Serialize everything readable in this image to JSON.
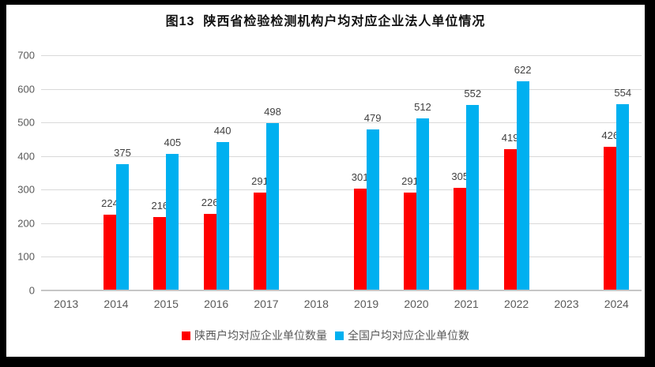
{
  "chart_data": {
    "type": "bar",
    "title": "图13  陕西省检验检测机构户均对应企业法人单位情况",
    "categories": [
      "2013",
      "2014",
      "2015",
      "2016",
      "2017",
      "2018",
      "2019",
      "2020",
      "2021",
      "2022",
      "2023",
      "2024"
    ],
    "series": [
      {
        "name": "陕西户均对应企业单位数量",
        "color": "#ff0000",
        "values": [
          null,
          224,
          216,
          226,
          291,
          null,
          301,
          291,
          305,
          419,
          null,
          426
        ]
      },
      {
        "name": "全国户均对应企业单位数",
        "color": "#00b0f0",
        "values": [
          null,
          375,
          405,
          440,
          498,
          null,
          479,
          512,
          552,
          622,
          null,
          554
        ]
      }
    ],
    "xlabel": "",
    "ylabel": "",
    "ylim": [
      0,
      700
    ],
    "ytick_step": 100,
    "grid": true,
    "data_labels": true,
    "legend_position": "bottom"
  }
}
